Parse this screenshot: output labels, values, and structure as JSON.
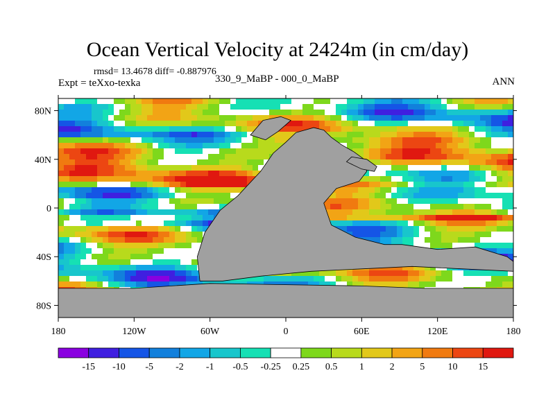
{
  "chart_data": {
    "type": "heatmap",
    "title": "Ocean Vertical Velocity at 2424m (in cm/day)",
    "stats": "rmsd= 13.4678 diff= -0.887976",
    "experiment": "Expt = teXxo-texka",
    "difference_label": "330_9_MaBP - 000_0_MaBP",
    "season": "ANN",
    "x_ticks": [
      "180",
      "120W",
      "60W",
      "0",
      "60E",
      "120E",
      "180"
    ],
    "x_tick_values": [
      -180,
      -120,
      -60,
      0,
      60,
      120,
      180
    ],
    "y_ticks": [
      "80N",
      "40N",
      "0",
      "40S",
      "80S"
    ],
    "y_tick_values": [
      80,
      40,
      0,
      -40,
      -80
    ],
    "xlim": [
      -180,
      180
    ],
    "ylim": [
      -90,
      90
    ],
    "land_color": "#a0a0a0",
    "colorbar": {
      "labels": [
        "-15",
        "-10",
        "-5",
        "-2",
        "-1",
        "-0.5",
        "-0.25",
        "0.25",
        "0.5",
        "1",
        "2",
        "5",
        "10",
        "15"
      ],
      "colors": [
        "#8a00e0",
        "#3f1fe0",
        "#1555e6",
        "#1280dc",
        "#12a6e6",
        "#18c6cc",
        "#16e0b4",
        "#ffffff",
        "#7ed81c",
        "#b8da1c",
        "#e2c81a",
        "#f2a415",
        "#f07a10",
        "#ec4612",
        "#e01810"
      ]
    }
  }
}
